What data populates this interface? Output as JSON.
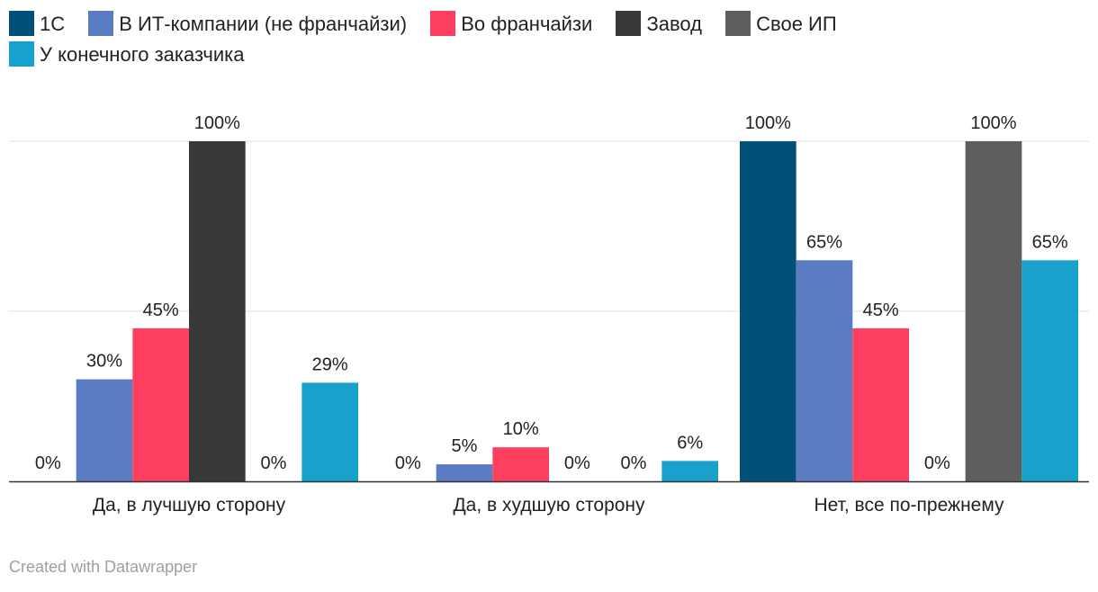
{
  "chart_data": {
    "type": "bar",
    "categories": [
      "Да, в лучшую сторону",
      "Да, в худшую сторону",
      "Нет, все по-прежнему"
    ],
    "series": [
      {
        "name": "1С",
        "color": "#00507a",
        "values": [
          0,
          0,
          100
        ]
      },
      {
        "name": "В ИТ-компании (не франчайзи)",
        "color": "#5b7bc3",
        "values": [
          30,
          5,
          65
        ]
      },
      {
        "name": "Во франчайзи",
        "color": "#ff3f60",
        "values": [
          45,
          10,
          45
        ]
      },
      {
        "name": "Завод",
        "color": "#383838",
        "values": [
          100,
          0,
          0
        ]
      },
      {
        "name": "Свое ИП",
        "color": "#5e5e5e",
        "values": [
          0,
          0,
          100
        ]
      },
      {
        "name": "У конечного заказчика",
        "color": "#18a1cd",
        "values": [
          29,
          6,
          65
        ]
      }
    ],
    "value_suffix": "%",
    "ylim": [
      0,
      100
    ],
    "gridlines": [
      50,
      100
    ],
    "legend_position": "top"
  },
  "footer": {
    "credit": "Created with Datawrapper"
  }
}
